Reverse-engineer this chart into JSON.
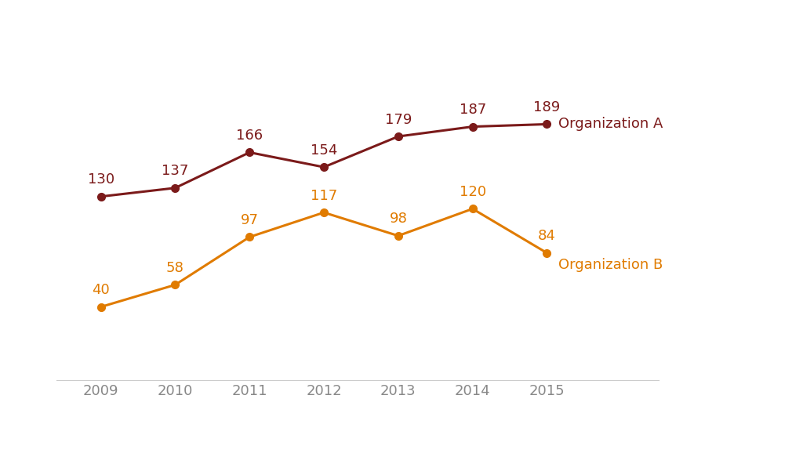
{
  "years": [
    2009,
    2010,
    2011,
    2012,
    2013,
    2014,
    2015
  ],
  "org_a": [
    130,
    137,
    166,
    154,
    179,
    187,
    189
  ],
  "org_b": [
    40,
    58,
    97,
    117,
    98,
    120,
    84
  ],
  "color_a": "#7B1A1A",
  "color_b": "#E07B00",
  "label_a": "Organization A",
  "label_b": "Organization B",
  "background_color": "#FFFFFF",
  "grid_color": "#CCCCCC",
  "ylim": [
    -20,
    260
  ],
  "xlim": [
    2008.4,
    2016.5
  ],
  "yticks": [
    0,
    40,
    80,
    120,
    160,
    200
  ],
  "xlabel_color": "#888888",
  "xlabel_fontsize": 13,
  "label_fontsize": 13,
  "annot_fontsize": 13,
  "linewidth": 2.2,
  "markersize": 7
}
